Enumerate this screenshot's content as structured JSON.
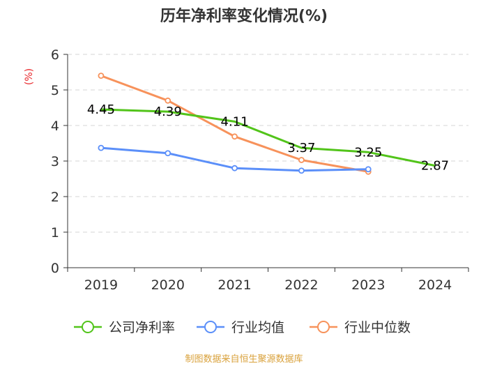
{
  "chart_data": {
    "type": "line",
    "title": "历年净利率变化情况(%)",
    "ylabel": "(%)",
    "xlabel": "",
    "categories": [
      "2019",
      "2020",
      "2021",
      "2022",
      "2023",
      "2024"
    ],
    "ylim": [
      0,
      6
    ],
    "yticks": [
      0,
      1,
      2,
      3,
      4,
      5,
      6
    ],
    "grid": true,
    "legend_position": "bottom",
    "series": [
      {
        "name": "公司净利率",
        "color": "#52c41a",
        "values": [
          4.45,
          4.39,
          4.11,
          3.37,
          3.25,
          2.87
        ],
        "labels": [
          "4.45",
          "4.39",
          "4.11",
          "3.37",
          "3.25",
          "2.87"
        ]
      },
      {
        "name": "行业均值",
        "color": "#5b8ff9",
        "values": [
          3.37,
          3.22,
          2.8,
          2.73,
          2.77,
          null
        ]
      },
      {
        "name": "行业中位数",
        "color": "#f7925b",
        "values": [
          5.4,
          4.7,
          3.69,
          3.03,
          2.7,
          null
        ]
      }
    ]
  },
  "source": "制图数据来自恒生聚源数据库"
}
